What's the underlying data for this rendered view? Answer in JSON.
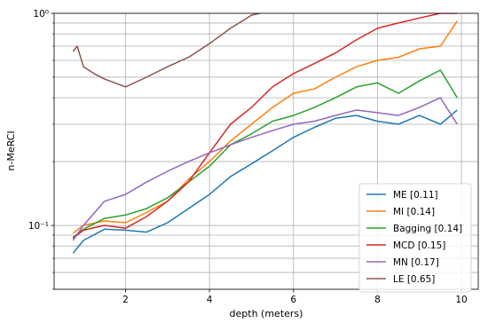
{
  "chart_data": {
    "type": "line",
    "xlabel": "depth (meters)",
    "ylabel": "n-MeRCI",
    "xscale": "linear",
    "yscale": "log",
    "xlim": [
      0.3,
      10.4
    ],
    "ylim": [
      0.05,
      1.0
    ],
    "xticks": [
      2,
      4,
      6,
      8,
      10
    ],
    "xtick_labels": [
      "2",
      "4",
      "6",
      "8",
      "10"
    ],
    "yticks": [
      0.1,
      1.0
    ],
    "ytick_labels": [
      "10⁻¹",
      "10⁰"
    ],
    "grid": true,
    "legend_position": "lower-right",
    "series": [
      {
        "name": "ME [0.11]",
        "color": "#1f77b4",
        "x": [
          0.75,
          1.0,
          1.5,
          2.0,
          2.5,
          3.0,
          3.5,
          4.0,
          4.5,
          5.0,
          5.5,
          6.0,
          6.5,
          7.0,
          7.5,
          8.0,
          8.5,
          9.0,
          9.5,
          9.9
        ],
        "y": [
          0.074,
          0.085,
          0.096,
          0.095,
          0.093,
          0.103,
          0.12,
          0.14,
          0.17,
          0.195,
          0.225,
          0.26,
          0.29,
          0.32,
          0.33,
          0.31,
          0.3,
          0.33,
          0.3,
          0.35
        ]
      },
      {
        "name": "MI [0.14]",
        "color": "#ff7f0e",
        "x": [
          0.75,
          1.0,
          1.5,
          2.0,
          2.5,
          3.0,
          3.5,
          4.0,
          4.5,
          5.0,
          5.5,
          6.0,
          6.5,
          7.0,
          7.5,
          8.0,
          8.5,
          9.0,
          9.5,
          9.9
        ],
        "y": [
          0.092,
          0.1,
          0.105,
          0.103,
          0.115,
          0.13,
          0.165,
          0.2,
          0.25,
          0.3,
          0.36,
          0.42,
          0.44,
          0.5,
          0.56,
          0.6,
          0.62,
          0.68,
          0.7,
          0.92
        ]
      },
      {
        "name": "Bagging [0.14]",
        "color": "#2ca02c",
        "x": [
          0.75,
          1.0,
          1.5,
          2.0,
          2.5,
          3.0,
          3.5,
          4.0,
          4.5,
          5.0,
          5.5,
          6.0,
          6.5,
          7.0,
          7.5,
          8.0,
          8.5,
          9.0,
          9.5,
          9.9
        ],
        "y": [
          0.088,
          0.096,
          0.108,
          0.112,
          0.12,
          0.135,
          0.16,
          0.19,
          0.24,
          0.27,
          0.31,
          0.33,
          0.36,
          0.4,
          0.45,
          0.47,
          0.42,
          0.48,
          0.54,
          0.4
        ]
      },
      {
        "name": "MCD [0.15]",
        "color": "#d62728",
        "x": [
          0.75,
          1.0,
          1.5,
          2.0,
          2.5,
          3.0,
          3.5,
          4.0,
          4.5,
          5.0,
          5.5,
          6.0,
          6.5,
          7.0,
          7.5,
          8.0,
          8.5,
          9.0,
          9.5,
          9.9
        ],
        "y": [
          0.087,
          0.095,
          0.1,
          0.097,
          0.11,
          0.13,
          0.16,
          0.22,
          0.3,
          0.36,
          0.45,
          0.52,
          0.58,
          0.65,
          0.75,
          0.85,
          0.9,
          0.95,
          1.0,
          1.0
        ]
      },
      {
        "name": "MN [0.17]",
        "color": "#9467bd",
        "x": [
          0.75,
          1.0,
          1.5,
          2.0,
          2.5,
          3.0,
          3.5,
          4.0,
          4.5,
          5.0,
          5.5,
          6.0,
          6.5,
          7.0,
          7.5,
          8.0,
          8.5,
          9.0,
          9.5,
          9.9
        ],
        "y": [
          0.085,
          0.1,
          0.13,
          0.14,
          0.16,
          0.18,
          0.2,
          0.22,
          0.24,
          0.26,
          0.28,
          0.3,
          0.31,
          0.33,
          0.35,
          0.34,
          0.33,
          0.36,
          0.4,
          0.3
        ]
      },
      {
        "name": "LE [0.65]",
        "color": "#8c564b",
        "x": [
          0.75,
          0.85,
          1.0,
          1.25,
          1.5,
          1.75,
          2.0,
          2.5,
          3.0,
          3.5,
          4.0,
          4.5,
          5.0,
          5.2
        ],
        "y": [
          0.66,
          0.7,
          0.56,
          0.52,
          0.49,
          0.47,
          0.45,
          0.5,
          0.56,
          0.62,
          0.72,
          0.85,
          0.98,
          1.0
        ]
      }
    ]
  }
}
